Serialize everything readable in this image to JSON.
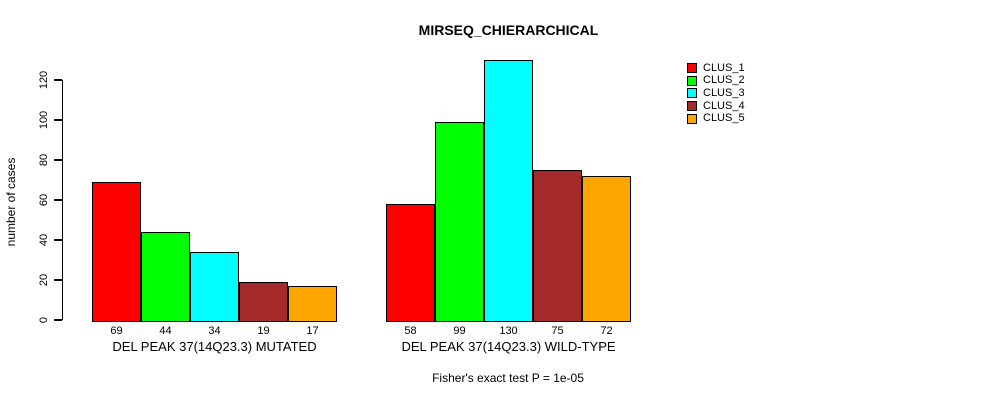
{
  "chart_data": {
    "type": "bar",
    "title": "MIRSEQ_CHIERARCHICAL",
    "ylabel": "number of cases",
    "xlabel": "",
    "footnote": "Fisher's exact test P = 1e-05",
    "ylim": [
      0,
      130
    ],
    "yticks": [
      0,
      20,
      40,
      60,
      80,
      100,
      120
    ],
    "grid": false,
    "legend_position": "top-right",
    "series": [
      {
        "name": "CLUS_1",
        "color": "#ff0000"
      },
      {
        "name": "CLUS_2",
        "color": "#00ff00"
      },
      {
        "name": "CLUS_3",
        "color": "#00ffff"
      },
      {
        "name": "CLUS_4",
        "color": "#a52a2a"
      },
      {
        "name": "CLUS_5",
        "color": "#ffa500"
      }
    ],
    "groups": [
      {
        "label": "DEL PEAK 37(14Q23.3) MUTATED",
        "values": [
          69,
          44,
          34,
          19,
          17
        ]
      },
      {
        "label": "DEL PEAK 37(14Q23.3) WILD-TYPE",
        "values": [
          58,
          99,
          130,
          75,
          72
        ]
      }
    ],
    "bar_value_labels_shown": true
  }
}
